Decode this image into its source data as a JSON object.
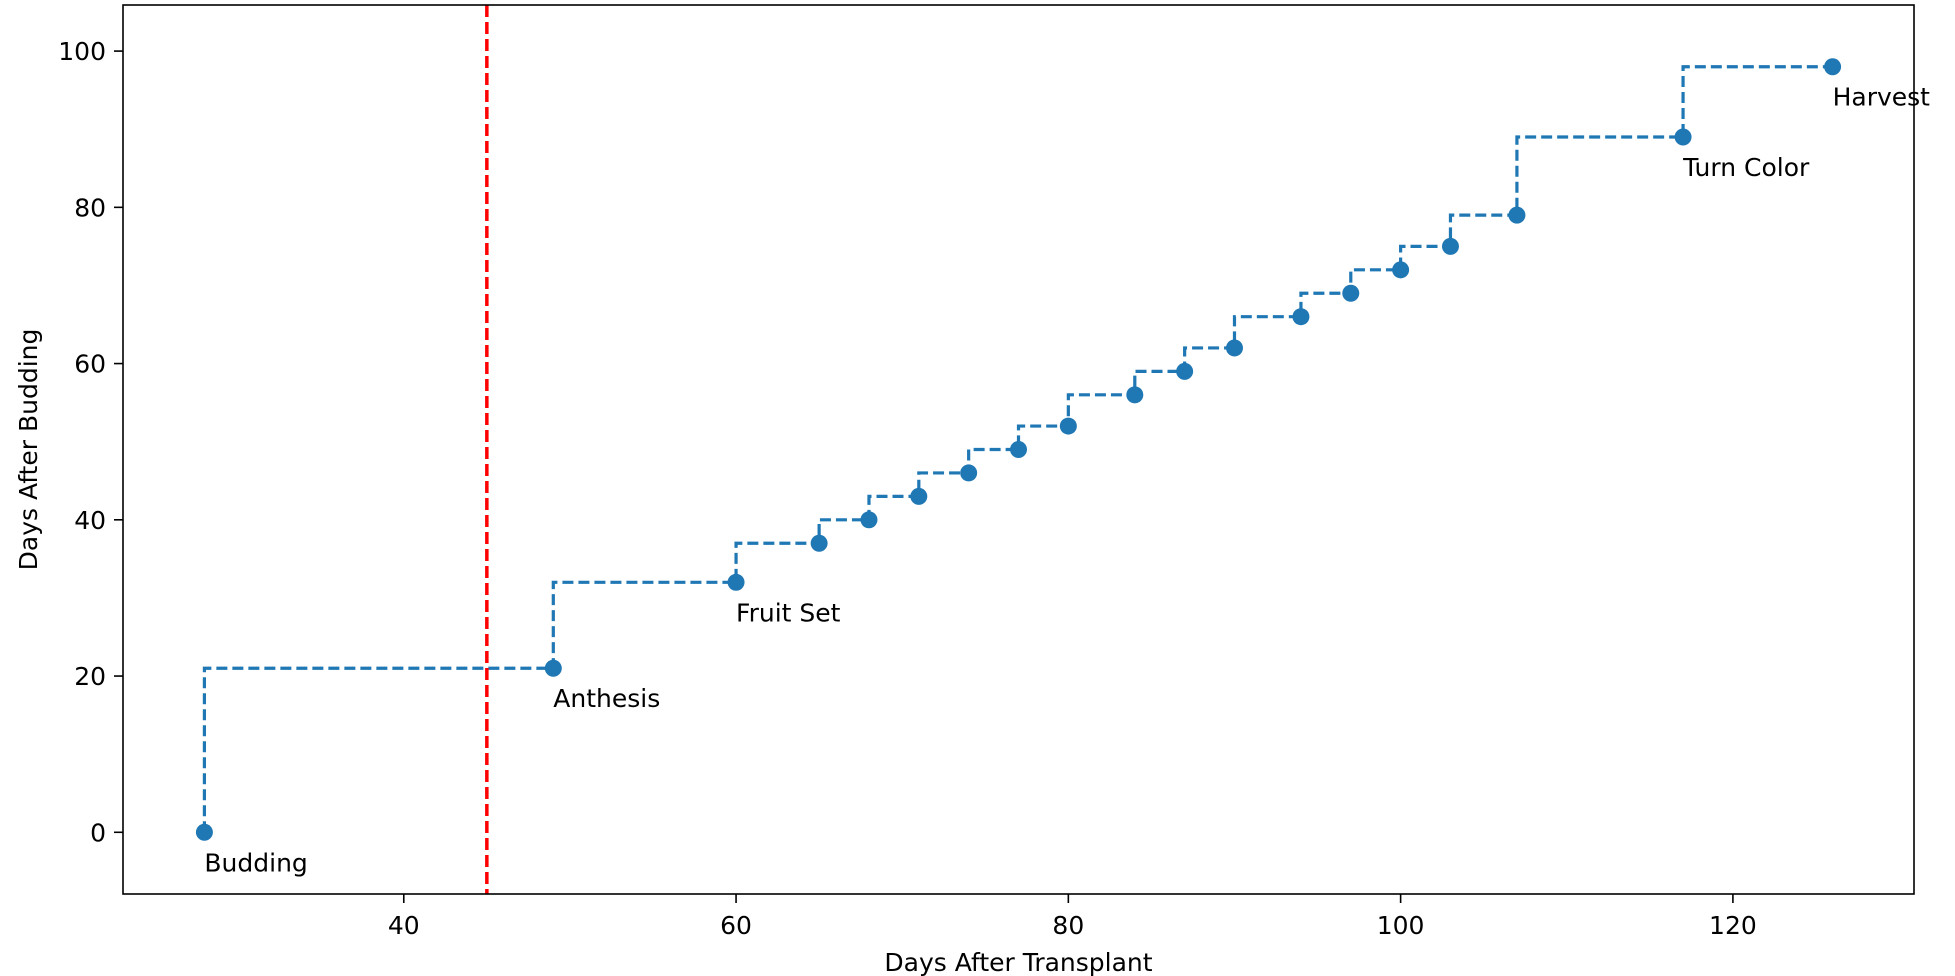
{
  "chart_data": {
    "type": "line",
    "title": "",
    "xlabel": "Days After Transplant",
    "ylabel": "Days After Budding",
    "xlim": [
      23.1,
      130.9
    ],
    "ylim": [
      -7.9,
      105.9
    ],
    "xticks": [
      40,
      60,
      80,
      100,
      120
    ],
    "yticks": [
      0,
      20,
      40,
      60,
      80,
      100
    ],
    "grid": false,
    "line_style": "dashed-step",
    "marker": "circle",
    "series_color": "#1f77b4",
    "series": [
      {
        "x": [
          28,
          49,
          60,
          65,
          68,
          71,
          74,
          77,
          80,
          84,
          87,
          90,
          94,
          97,
          100,
          103,
          107,
          117,
          126
        ],
        "y": [
          0,
          21,
          32,
          37,
          40,
          43,
          46,
          49,
          52,
          56,
          59,
          62,
          66,
          69,
          72,
          75,
          79,
          89,
          98
        ]
      }
    ],
    "annotations": [
      {
        "text": "Budding",
        "x": 28,
        "y": 0
      },
      {
        "text": "Anthesis",
        "x": 49,
        "y": 21
      },
      {
        "text": "Fruit Set",
        "x": 60,
        "y": 32
      },
      {
        "text": "Turn Color",
        "x": 117,
        "y": 89
      },
      {
        "text": "Harvest",
        "x": 126,
        "y": 98
      }
    ],
    "vline": {
      "x": 45,
      "color": "#ff0000",
      "style": "dashed"
    }
  }
}
